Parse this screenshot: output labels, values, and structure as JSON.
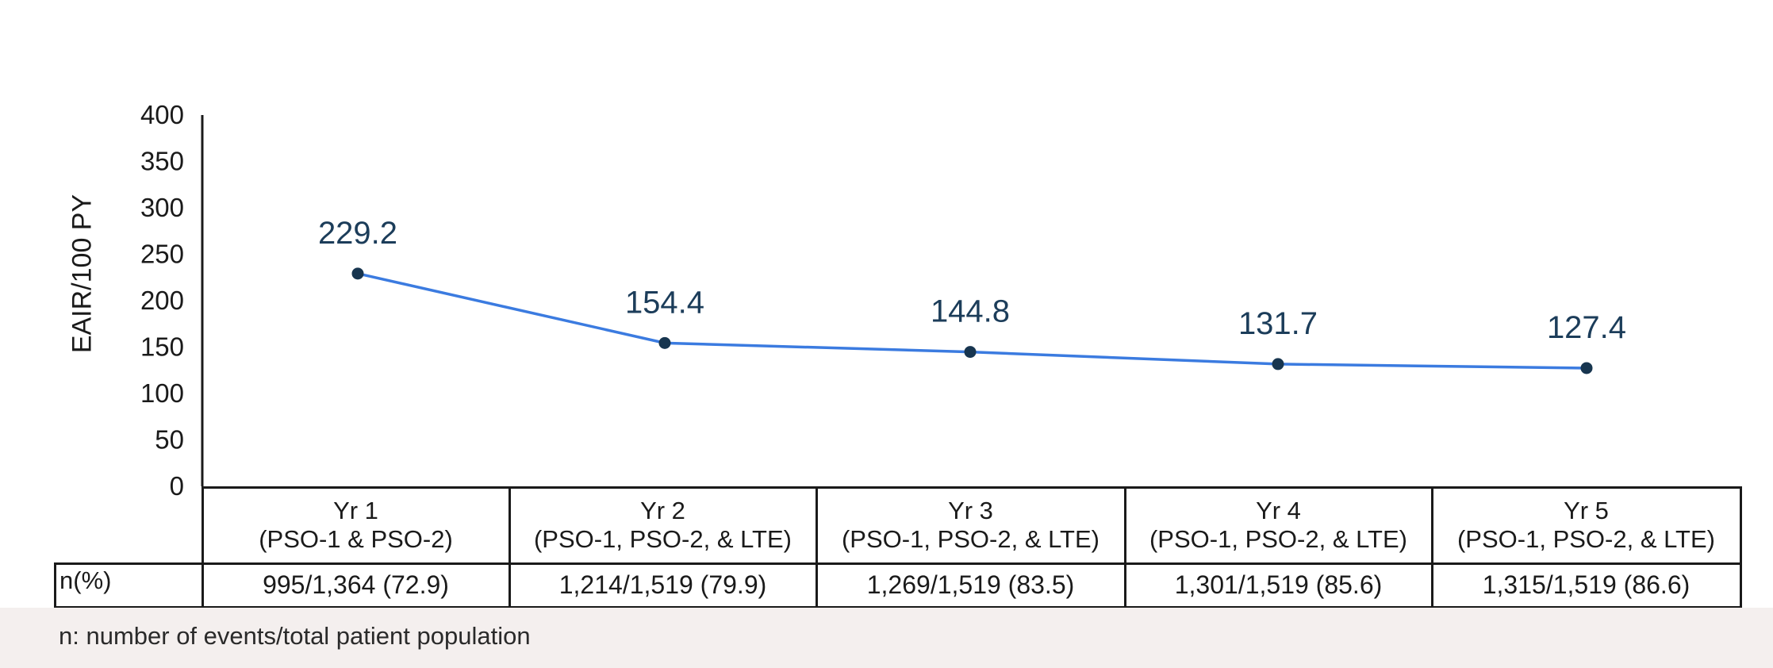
{
  "chart_data": {
    "type": "line",
    "ylabel": "EAIR/100 PY",
    "xlabel": "",
    "ylim": [
      0,
      400
    ],
    "y_ticks": [
      "0",
      "50",
      "100",
      "150",
      "200",
      "250",
      "300",
      "350",
      "400"
    ],
    "categories": [
      {
        "name": "Yr 1",
        "sub": "(PSO-1 & PSO-2)"
      },
      {
        "name": "Yr 2",
        "sub": "(PSO-1, PSO-2, & LTE)"
      },
      {
        "name": "Yr 3",
        "sub": "(PSO-1, PSO-2, & LTE)"
      },
      {
        "name": "Yr 4",
        "sub": "(PSO-1, PSO-2, & LTE)"
      },
      {
        "name": "Yr 5",
        "sub": "(PSO-1, PSO-2, & LTE)"
      }
    ],
    "values": [
      229.2,
      154.4,
      144.8,
      131.7,
      127.4
    ],
    "data_labels": [
      "229.2",
      "154.4",
      "144.8",
      "131.7",
      "127.4"
    ],
    "line_color": "#3b7be0",
    "marker_color": "#17354f",
    "label_color": "#1c3d5a",
    "grid": false,
    "table": {
      "row_label": "n(%)",
      "row_values": [
        "995/1,364 (72.9)",
        "1,214/1,519 (79.9)",
        "1,269/1,519 (83.5)",
        "1,301/1,519 (85.6)",
        "1,315/1,519 (86.6)"
      ]
    }
  },
  "footnote": "n: number of events/total patient population"
}
